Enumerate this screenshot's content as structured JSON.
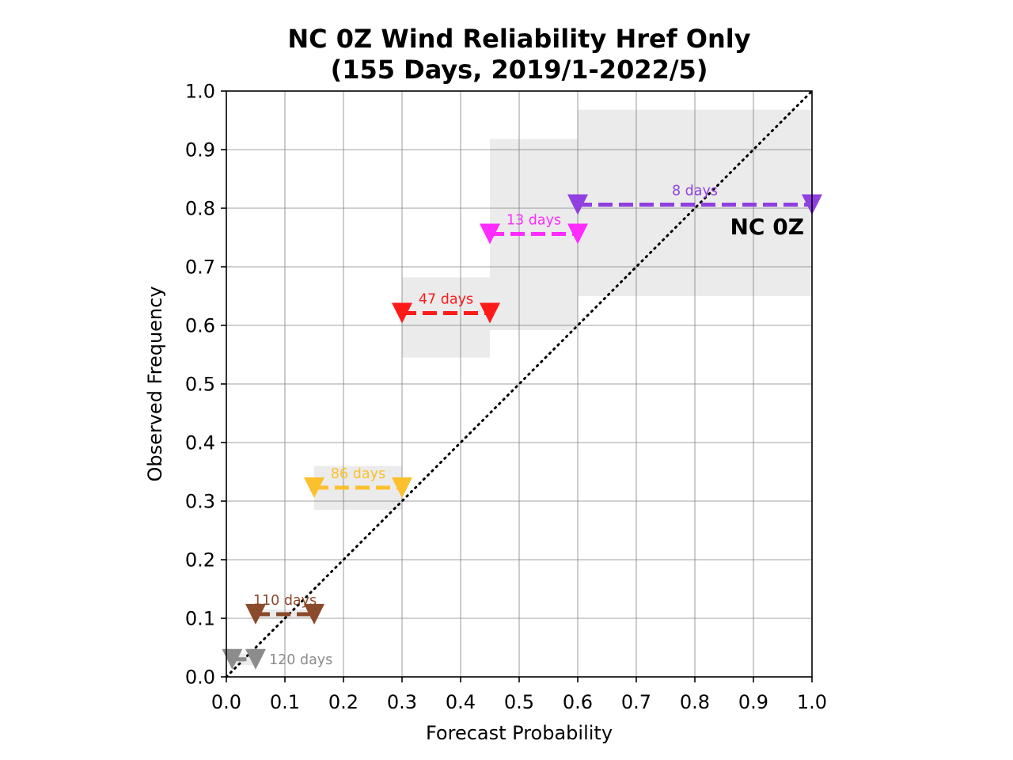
{
  "chart_data": {
    "type": "line",
    "title_lines": [
      "NC 0Z Wind Reliability Href Only",
      "(155 Days, 2019/1-2022/5)"
    ],
    "xlabel": "Forecast Probability",
    "ylabel": "Observed Frequency",
    "xlim": [
      0.0,
      1.0
    ],
    "ylim": [
      0.0,
      1.0
    ],
    "xticks": [
      "0.0",
      "0.1",
      "0.2",
      "0.3",
      "0.4",
      "0.5",
      "0.6",
      "0.7",
      "0.8",
      "0.9",
      "1.0"
    ],
    "yticks": [
      "0.0",
      "0.1",
      "0.2",
      "0.3",
      "0.4",
      "0.5",
      "0.6",
      "0.7",
      "0.8",
      "0.9",
      "1.0"
    ],
    "grid": true,
    "region_label": "NC 0Z",
    "diagonal": {
      "from": [
        0,
        0
      ],
      "to": [
        1,
        1
      ],
      "style": "dotted",
      "color": "#000000"
    },
    "bins": [
      {
        "x_low": 0.01,
        "x_high": 0.05,
        "observed": 0.03,
        "ci_low": 0.02,
        "ci_high": 0.04,
        "days_label": "120 days",
        "color": "#8c8c8c",
        "label_side": "right"
      },
      {
        "x_low": 0.05,
        "x_high": 0.15,
        "observed": 0.107,
        "ci_low": 0.1,
        "ci_high": 0.115,
        "days_label": "110 days",
        "color": "#8b4a2b",
        "label_side": "above"
      },
      {
        "x_low": 0.15,
        "x_high": 0.3,
        "observed": 0.323,
        "ci_low": 0.285,
        "ci_high": 0.36,
        "days_label": "86 days",
        "color": "#fbc02d",
        "label_side": "above"
      },
      {
        "x_low": 0.3,
        "x_high": 0.45,
        "observed": 0.621,
        "ci_low": 0.545,
        "ci_high": 0.682,
        "days_label": "47 days",
        "color": "#ff1a1a",
        "label_side": "above"
      },
      {
        "x_low": 0.45,
        "x_high": 0.6,
        "observed": 0.756,
        "ci_low": 0.592,
        "ci_high": 0.918,
        "days_label": "13 days",
        "color": "#ff2bff",
        "label_side": "above"
      },
      {
        "x_low": 0.6,
        "x_high": 1.0,
        "observed": 0.806,
        "ci_low": 0.65,
        "ci_high": 0.968,
        "days_label": "8 days",
        "color": "#9040e0",
        "label_side": "above"
      }
    ]
  }
}
